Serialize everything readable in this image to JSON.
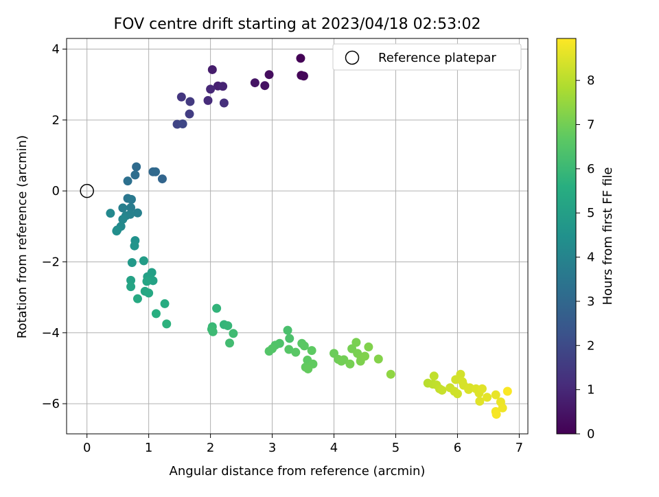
{
  "chart_data": {
    "type": "scatter",
    "title": "FOV centre drift starting at 2023/04/18 02:53:02",
    "xlabel": "Angular distance from reference (arcmin)",
    "ylabel": "Rotation from reference (arcmin)",
    "xlim": [
      -0.33,
      7.14
    ],
    "ylim": [
      -6.85,
      4.3
    ],
    "x_ticks": [
      0,
      1,
      2,
      3,
      4,
      5,
      6,
      7
    ],
    "y_ticks": [
      -6,
      -4,
      -2,
      0,
      2,
      4
    ],
    "grid": true,
    "colormap": "viridis",
    "colorbar": {
      "label": "Hours from first FF file",
      "range": [
        0,
        8.95
      ],
      "ticks": [
        0,
        1,
        2,
        3,
        4,
        5,
        6,
        7,
        8
      ]
    },
    "legend": {
      "position": "top-right",
      "entries": [
        {
          "label": "Reference platepar",
          "marker": "open-circle"
        }
      ]
    },
    "reference_point": {
      "x": 0,
      "y": 0
    },
    "points": [
      {
        "x": 3.46,
        "y": 3.74,
        "c": 0.05
      },
      {
        "x": 3.47,
        "y": 3.26,
        "c": 0.1
      },
      {
        "x": 3.51,
        "y": 3.24,
        "c": 0.15
      },
      {
        "x": 2.95,
        "y": 3.28,
        "c": 0.3
      },
      {
        "x": 2.88,
        "y": 2.97,
        "c": 0.4
      },
      {
        "x": 2.72,
        "y": 3.05,
        "c": 0.5
      },
      {
        "x": 2.03,
        "y": 3.42,
        "c": 0.7
      },
      {
        "x": 2.12,
        "y": 2.96,
        "c": 0.8
      },
      {
        "x": 2.2,
        "y": 2.95,
        "c": 0.9
      },
      {
        "x": 2.0,
        "y": 2.87,
        "c": 1.0
      },
      {
        "x": 1.96,
        "y": 2.55,
        "c": 1.1
      },
      {
        "x": 2.22,
        "y": 2.48,
        "c": 1.2
      },
      {
        "x": 1.53,
        "y": 2.65,
        "c": 1.4
      },
      {
        "x": 1.67,
        "y": 2.52,
        "c": 1.5
      },
      {
        "x": 1.66,
        "y": 2.17,
        "c": 1.6
      },
      {
        "x": 1.46,
        "y": 1.88,
        "c": 1.8
      },
      {
        "x": 1.55,
        "y": 1.89,
        "c": 1.9
      },
      {
        "x": 1.22,
        "y": 0.34,
        "c": 2.9
      },
      {
        "x": 1.07,
        "y": 0.54,
        "c": 3.0
      },
      {
        "x": 1.11,
        "y": 0.54,
        "c": 3.05
      },
      {
        "x": 0.8,
        "y": 0.68,
        "c": 3.1
      },
      {
        "x": 0.78,
        "y": 0.45,
        "c": 3.2
      },
      {
        "x": 0.66,
        "y": 0.28,
        "c": 3.3
      },
      {
        "x": 0.66,
        "y": -0.21,
        "c": 3.5
      },
      {
        "x": 0.72,
        "y": -0.24,
        "c": 3.6
      },
      {
        "x": 0.71,
        "y": -0.47,
        "c": 3.7
      },
      {
        "x": 0.58,
        "y": -0.48,
        "c": 3.8
      },
      {
        "x": 0.82,
        "y": -0.62,
        "c": 3.85
      },
      {
        "x": 0.7,
        "y": -0.66,
        "c": 3.9
      },
      {
        "x": 0.63,
        "y": -0.7,
        "c": 4.0
      },
      {
        "x": 0.58,
        "y": -0.8,
        "c": 4.1
      },
      {
        "x": 0.38,
        "y": -0.63,
        "c": 4.15
      },
      {
        "x": 0.55,
        "y": -1.0,
        "c": 4.2
      },
      {
        "x": 0.49,
        "y": -1.1,
        "c": 4.3
      },
      {
        "x": 0.48,
        "y": -1.13,
        "c": 4.35
      },
      {
        "x": 0.78,
        "y": -1.4,
        "c": 4.5
      },
      {
        "x": 0.77,
        "y": -1.55,
        "c": 4.6
      },
      {
        "x": 0.73,
        "y": -2.02,
        "c": 4.8
      },
      {
        "x": 0.92,
        "y": -1.97,
        "c": 4.9
      },
      {
        "x": 1.05,
        "y": -2.3,
        "c": 5.0
      },
      {
        "x": 0.98,
        "y": -2.42,
        "c": 5.05
      },
      {
        "x": 1.02,
        "y": -2.48,
        "c": 5.1
      },
      {
        "x": 1.07,
        "y": -2.53,
        "c": 5.15
      },
      {
        "x": 0.97,
        "y": -2.55,
        "c": 5.2
      },
      {
        "x": 0.71,
        "y": -2.52,
        "c": 5.1
      },
      {
        "x": 0.71,
        "y": -2.7,
        "c": 5.2
      },
      {
        "x": 0.94,
        "y": -2.83,
        "c": 5.3
      },
      {
        "x": 1.0,
        "y": -2.88,
        "c": 5.35
      },
      {
        "x": 0.82,
        "y": -3.04,
        "c": 5.4
      },
      {
        "x": 1.26,
        "y": -3.18,
        "c": 5.5
      },
      {
        "x": 1.12,
        "y": -3.46,
        "c": 5.6
      },
      {
        "x": 1.29,
        "y": -3.75,
        "c": 5.7
      },
      {
        "x": 2.1,
        "y": -3.31,
        "c": 5.8
      },
      {
        "x": 2.22,
        "y": -3.77,
        "c": 5.85
      },
      {
        "x": 2.28,
        "y": -3.8,
        "c": 5.9
      },
      {
        "x": 2.03,
        "y": -3.83,
        "c": 5.95
      },
      {
        "x": 2.02,
        "y": -3.9,
        "c": 6.0
      },
      {
        "x": 2.04,
        "y": -3.97,
        "c": 6.05
      },
      {
        "x": 2.37,
        "y": -4.02,
        "c": 6.1
      },
      {
        "x": 2.31,
        "y": -4.29,
        "c": 6.15
      },
      {
        "x": 3.25,
        "y": -3.93,
        "c": 6.3
      },
      {
        "x": 3.28,
        "y": -4.16,
        "c": 6.35
      },
      {
        "x": 3.12,
        "y": -4.3,
        "c": 6.4
      },
      {
        "x": 3.05,
        "y": -4.35,
        "c": 6.45
      },
      {
        "x": 3.0,
        "y": -4.45,
        "c": 6.5
      },
      {
        "x": 2.95,
        "y": -4.52,
        "c": 6.5
      },
      {
        "x": 3.27,
        "y": -4.47,
        "c": 6.55
      },
      {
        "x": 3.38,
        "y": -4.55,
        "c": 6.6
      },
      {
        "x": 3.48,
        "y": -4.3,
        "c": 6.6
      },
      {
        "x": 3.52,
        "y": -4.37,
        "c": 6.65
      },
      {
        "x": 3.64,
        "y": -4.5,
        "c": 6.7
      },
      {
        "x": 3.57,
        "y": -4.77,
        "c": 6.7
      },
      {
        "x": 3.66,
        "y": -4.88,
        "c": 6.75
      },
      {
        "x": 3.54,
        "y": -4.97,
        "c": 6.75
      },
      {
        "x": 3.58,
        "y": -5.02,
        "c": 6.8
      },
      {
        "x": 4.0,
        "y": -4.58,
        "c": 6.9
      },
      {
        "x": 4.07,
        "y": -4.75,
        "c": 6.95
      },
      {
        "x": 4.12,
        "y": -4.8,
        "c": 7.0
      },
      {
        "x": 4.16,
        "y": -4.76,
        "c": 7.0
      },
      {
        "x": 4.26,
        "y": -4.88,
        "c": 7.05
      },
      {
        "x": 4.29,
        "y": -4.45,
        "c": 7.05
      },
      {
        "x": 4.36,
        "y": -4.27,
        "c": 7.1
      },
      {
        "x": 4.38,
        "y": -4.58,
        "c": 7.1
      },
      {
        "x": 4.44,
        "y": -4.72,
        "c": 7.15
      },
      {
        "x": 4.43,
        "y": -4.8,
        "c": 7.15
      },
      {
        "x": 4.5,
        "y": -4.66,
        "c": 7.2
      },
      {
        "x": 4.56,
        "y": -4.4,
        "c": 7.2
      },
      {
        "x": 4.72,
        "y": -4.74,
        "c": 7.25
      },
      {
        "x": 4.92,
        "y": -5.17,
        "c": 7.4
      },
      {
        "x": 5.52,
        "y": -5.42,
        "c": 8.0
      },
      {
        "x": 5.6,
        "y": -5.45,
        "c": 8.05
      },
      {
        "x": 5.62,
        "y": -5.22,
        "c": 8.1
      },
      {
        "x": 5.66,
        "y": -5.47,
        "c": 8.1
      },
      {
        "x": 5.71,
        "y": -5.58,
        "c": 8.15
      },
      {
        "x": 5.75,
        "y": -5.62,
        "c": 8.2
      },
      {
        "x": 5.88,
        "y": -5.55,
        "c": 8.25
      },
      {
        "x": 5.95,
        "y": -5.65,
        "c": 8.3
      },
      {
        "x": 6.0,
        "y": -5.72,
        "c": 8.3
      },
      {
        "x": 5.97,
        "y": -5.32,
        "c": 8.35
      },
      {
        "x": 6.05,
        "y": -5.17,
        "c": 8.35
      },
      {
        "x": 6.08,
        "y": -5.38,
        "c": 8.4
      },
      {
        "x": 6.1,
        "y": -5.48,
        "c": 8.4
      },
      {
        "x": 6.18,
        "y": -5.6,
        "c": 8.45
      },
      {
        "x": 6.2,
        "y": -5.55,
        "c": 8.45
      },
      {
        "x": 6.3,
        "y": -5.58,
        "c": 8.5
      },
      {
        "x": 6.35,
        "y": -5.7,
        "c": 8.5
      },
      {
        "x": 6.4,
        "y": -5.58,
        "c": 8.55
      },
      {
        "x": 6.36,
        "y": -5.93,
        "c": 8.55
      },
      {
        "x": 6.48,
        "y": -5.82,
        "c": 8.6
      },
      {
        "x": 6.62,
        "y": -5.75,
        "c": 8.65
      },
      {
        "x": 6.7,
        "y": -5.95,
        "c": 8.7
      },
      {
        "x": 6.73,
        "y": -6.12,
        "c": 8.75
      },
      {
        "x": 6.62,
        "y": -6.22,
        "c": 8.8
      },
      {
        "x": 6.63,
        "y": -6.3,
        "c": 8.85
      },
      {
        "x": 6.81,
        "y": -5.65,
        "c": 8.9
      }
    ]
  }
}
